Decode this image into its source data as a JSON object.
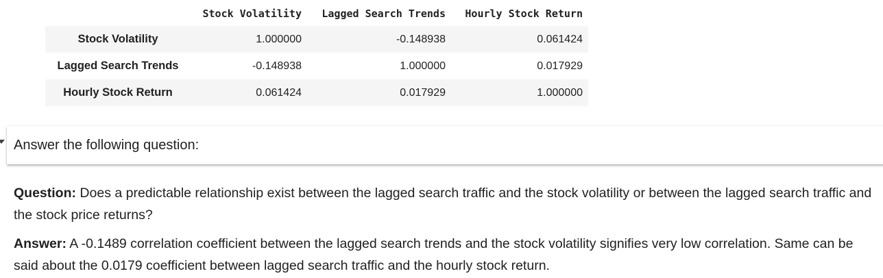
{
  "table": {
    "columns": [
      "Stock Volatility",
      "Lagged Search Trends",
      "Hourly Stock Return"
    ],
    "rows": [
      {
        "index": "Stock Volatility",
        "values": [
          "1.000000",
          "-0.148938",
          "0.061424"
        ]
      },
      {
        "index": "Lagged Search Trends",
        "values": [
          "-0.148938",
          "1.000000",
          "0.017929"
        ]
      },
      {
        "index": "Hourly Stock Return",
        "values": [
          "0.061424",
          "0.017929",
          "1.000000"
        ]
      }
    ]
  },
  "section": {
    "title": "Answer the following question:"
  },
  "question": {
    "label": "Question:",
    "text": " Does a predictable relationship exist between the lagged search traffic and the stock volatility or between the lagged search traffic and the stock price returns?"
  },
  "answer": {
    "label": "Answer:",
    "text": " A -0.1489 correlation coefficient between the lagged search trends and the stock volatility signifies very low correlation. Same can be said about the 0.0179 coefficient between lagged search traffic and the hourly stock return."
  }
}
